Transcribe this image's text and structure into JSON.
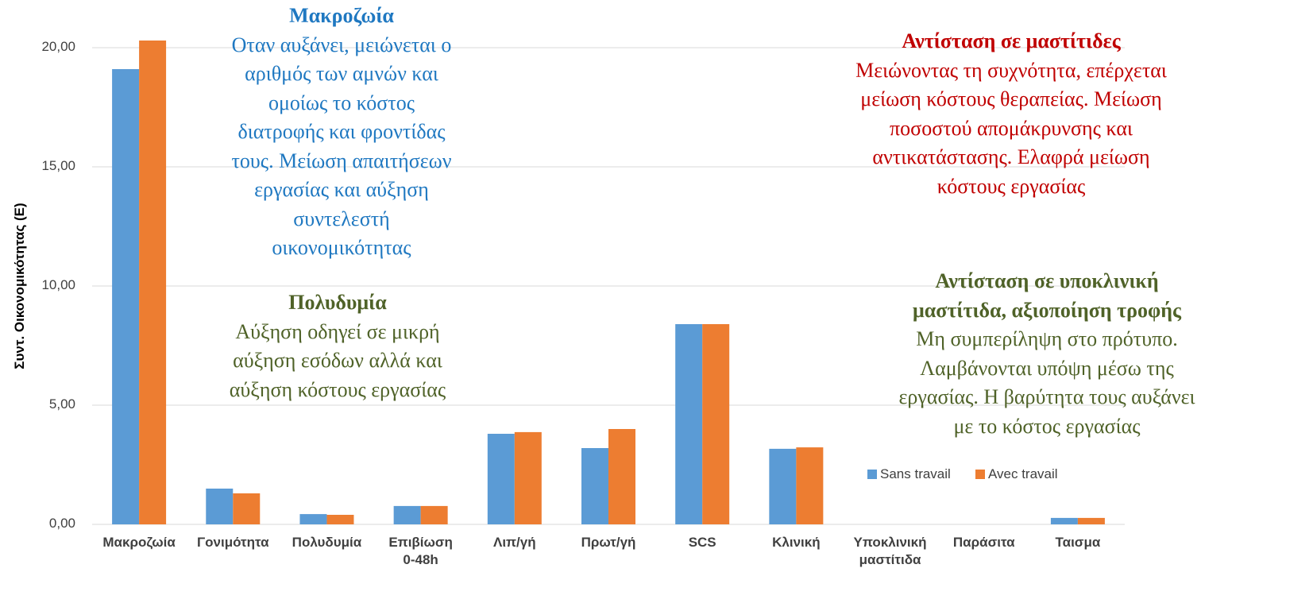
{
  "chart_data": {
    "type": "bar",
    "ylabel": "Συντ. Οικονομικότητας (Ε)",
    "categories": [
      "Μακροζωία",
      "Γονιμότητα",
      "Πολυδυμία",
      "Επιβίωση\n0-48h",
      "Λιπ/γή",
      "Πρωτ/γή",
      "SCS",
      "Κλινική",
      "Υποκλινική\nμαστίτιδα",
      "Παράσιτα",
      "Ταισμα"
    ],
    "series": [
      {
        "name": "Sans travail",
        "color": "#5b9bd5",
        "values": [
          19.1,
          1.5,
          0.43,
          0.77,
          3.8,
          3.2,
          8.4,
          3.17,
          0,
          0,
          0.27
        ]
      },
      {
        "name": "Avec travail",
        "color": "#ed7d31",
        "values": [
          20.3,
          1.3,
          0.4,
          0.77,
          3.87,
          4.0,
          8.4,
          3.23,
          0,
          0,
          0.27
        ]
      }
    ],
    "ylim": [
      0,
      21
    ],
    "yticks": [
      {
        "value": 0,
        "label": "0,00"
      },
      {
        "value": 5,
        "label": "5,00"
      },
      {
        "value": 10,
        "label": "10,00"
      },
      {
        "value": 15,
        "label": "15,00"
      },
      {
        "value": 20,
        "label": "20,00"
      }
    ],
    "grid": true,
    "legend": "lower right",
    "annotations": [
      {
        "title": "Μακροζωία",
        "text": "Οταν αυξάνει, μειώνεται ο\nαριθμός των αμνών και\nομοίως το κόστος\nδιατροφής και φροντίδας\nτους. Μείωση απαιτήσεων\nεργασίας και αύξηση\nσυντελεστή\nοικονομικότητας",
        "color": "#1f78c1"
      },
      {
        "title": "Πολυδυμία",
        "text": "Αύξηση οδηγεί σε μικρή\nαύξηση εσόδων αλλά και\nαύξηση κόστους εργασίας",
        "color": "#4f6228"
      },
      {
        "title": "Αντίσταση σε μαστίτιδες",
        "text": "Μειώνοντας τη συχνότητα, επέρχεται\nμείωση κόστους θεραπείας. Μείωση\nποσοστού απομάκρυνσης και\nαντικατάστασης. Ελαφρά μείωση\nκόστους εργασίας",
        "color": "#c00000"
      },
      {
        "title": "Αντίσταση σε υποκλινική\nμαστίτιδα, αξιοποίηση τροφής",
        "text": "Μη συμπερίληψη στο πρότυπο.\nΛαμβάνονται υπόψη μέσω της\nεργασίας. Η βαρύτητα τους αυξάνει\nμε το κόστος εργασίας",
        "color": "#4f6228"
      }
    ]
  }
}
